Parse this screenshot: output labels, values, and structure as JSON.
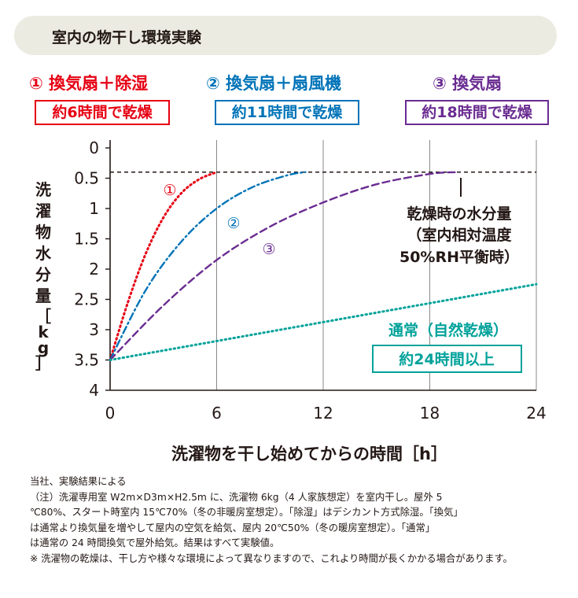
{
  "header": {
    "title": "室内の物干し環境実験"
  },
  "legend": [
    {
      "label": "① 換気扇＋除湿",
      "box": "約6時間で乾燥",
      "color": "#e60012"
    },
    {
      "label": "② 換気扇＋扇風機",
      "box": "約11時間で乾燥",
      "color": "#0073b8"
    },
    {
      "label": "③ 換気扇",
      "box": "約18時間で乾燥",
      "color": "#6a2c91"
    }
  ],
  "chart_data": {
    "type": "line",
    "xlabel": "洗濯物を干し始めてからの時間［h］",
    "ylabel": "洗濯物水分量",
    "ylabel_unit": "［kg］",
    "xlim": [
      0,
      24
    ],
    "ylim": [
      0,
      4
    ],
    "y_inverted": true,
    "x_ticks": [
      "0",
      "6",
      "12",
      "18",
      "24"
    ],
    "y_ticks": [
      "0",
      "0.5",
      "1",
      "1.5",
      "2",
      "2.5",
      "3",
      "3.5",
      "4"
    ],
    "grid": "vertical",
    "series": [
      {
        "name": "①",
        "color": "#e60012",
        "style": "dotted",
        "x": [
          0,
          1,
          2,
          3,
          4,
          5,
          6
        ],
        "y": [
          3.5,
          2.55,
          1.75,
          1.15,
          0.75,
          0.52,
          0.4
        ]
      },
      {
        "name": "②",
        "color": "#0073b8",
        "style": "dashdot",
        "x": [
          0,
          2,
          4,
          6,
          8,
          10,
          11
        ],
        "y": [
          3.5,
          2.35,
          1.55,
          1.0,
          0.65,
          0.45,
          0.4
        ]
      },
      {
        "name": "③",
        "color": "#6a2c91",
        "style": "dashed",
        "x": [
          0,
          3,
          6,
          9,
          12,
          15,
          18,
          19.5
        ],
        "y": [
          3.5,
          2.6,
          1.85,
          1.3,
          0.9,
          0.6,
          0.43,
          0.4
        ]
      },
      {
        "name": "通常（自然乾燥）",
        "color": "#00a29a",
        "style": "dotted",
        "x": [
          0,
          24
        ],
        "y": [
          3.5,
          2.25
        ]
      }
    ],
    "reference_line": {
      "y": 0.4,
      "color": "#231815",
      "style": "dashed"
    },
    "annotations": {
      "equilibrium": [
        "乾燥時の水分量",
        "（室内相対温度",
        "50%RH平衡時）"
      ],
      "normal_label": "通常（自然乾燥）",
      "normal_box": "約24時間以上"
    }
  },
  "notes": {
    "source": "当社、実験結果による",
    "note_lines": [
      "（注）洗濯専用室 W2m×D3m×H2.5m に、洗濯物 6kg（4 人家族想定）を室内干し。屋外 5",
      "℃80%、スタート時室内 15℃70%（冬の非暖房室想定）。「除湿」はデシカント方式除湿。「換気」",
      "は通常より換気量を増やして屋内の空気を給気、屋内 20℃50%（冬の暖房室想定）。「通常」",
      "は通常の 24 時間換気で屋外給気。結果はすべて実験値。"
    ],
    "asterisk": "※ 洗濯物の乾燥は、干し方や様々な環境によって異なりますので、これより時間が長くかかる場合があります。"
  }
}
